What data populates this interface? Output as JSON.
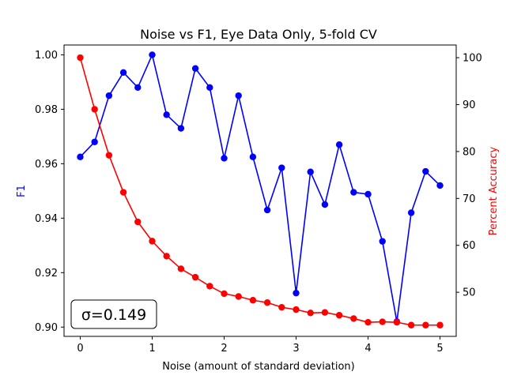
{
  "chart_data": {
    "type": "line",
    "title": "Noise vs F1, Eye Data Only, 5-fold CV",
    "xlabel": "Noise (amount of standard deviation)",
    "ylabel": "F1",
    "y2label": "Percent Accuracy",
    "annotation": "σ=0.149",
    "xlim": [
      -0.225,
      5.225
    ],
    "ylim": [
      0.8966,
      1.0036
    ],
    "y2lim": [
      40.6,
      102.7
    ],
    "x_ticks": [
      "0",
      "1",
      "2",
      "3",
      "4",
      "5"
    ],
    "x_tick_values": [
      0,
      1,
      2,
      3,
      4,
      5
    ],
    "y_ticks": [
      "0.90",
      "0.92",
      "0.94",
      "0.96",
      "0.98",
      "1.00"
    ],
    "y_tick_values": [
      0.9,
      0.92,
      0.94,
      0.96,
      0.98,
      1.0
    ],
    "y2_ticks": [
      "50",
      "60",
      "70",
      "80",
      "90",
      "100"
    ],
    "y2_tick_values": [
      50,
      60,
      70,
      80,
      90,
      100
    ],
    "x": [
      0,
      0.2,
      0.4,
      0.6,
      0.8,
      1.0,
      1.2,
      1.4,
      1.6,
      1.8,
      2.0,
      2.2,
      2.4,
      2.6,
      2.8,
      3.0,
      3.2,
      3.4,
      3.6,
      3.8,
      4.0,
      4.2,
      4.4,
      4.6,
      4.8,
      5.0
    ],
    "series": [
      {
        "axis": "left",
        "color": "#0000ff",
        "values": [
          0.9625,
          0.968,
          0.985,
          0.9935,
          0.988,
          1.0,
          0.978,
          0.973,
          0.995,
          0.988,
          0.962,
          0.985,
          0.9625,
          0.943,
          0.9585,
          0.9125,
          0.957,
          0.945,
          0.967,
          0.9495,
          0.9488,
          0.9315,
          0.902,
          0.942,
          0.9572,
          0.952
        ]
      },
      {
        "axis": "right",
        "color": "#ff0000",
        "values": [
          100,
          89,
          79.2,
          71.3,
          65,
          60.9,
          57.7,
          55,
          53.2,
          51.3,
          49.7,
          49.1,
          48.3,
          47.8,
          46.8,
          46.3,
          45.6,
          45.7,
          45.1,
          44.4,
          43.6,
          43.7,
          43.6,
          43,
          43,
          43
        ]
      }
    ]
  }
}
